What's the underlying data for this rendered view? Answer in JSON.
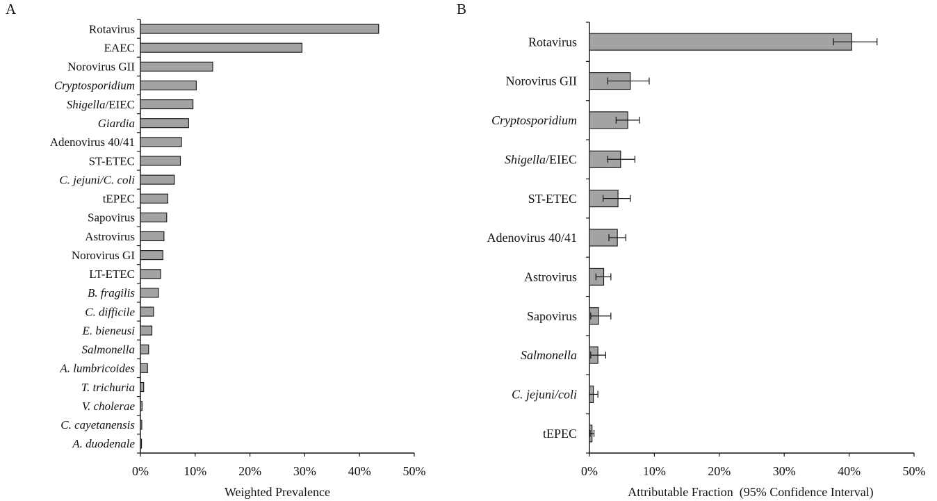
{
  "chart_data": [
    {
      "panel_label": "A",
      "type": "bar",
      "orientation": "horizontal",
      "xlabel": "Weighted Prevalence",
      "xlim": [
        0,
        50
      ],
      "xtick_labels": [
        "0%",
        "10%",
        "20%",
        "30%",
        "40%",
        "50%"
      ],
      "grid": false,
      "legend": "none",
      "bar_color": "#a3a3a6",
      "categories": [
        {
          "label": "Rotavirus",
          "italic": "",
          "rest": "Rotavirus"
        },
        {
          "label": "EAEC",
          "italic": "",
          "rest": "EAEC"
        },
        {
          "label": "Norovirus GII",
          "italic": "",
          "rest": "Norovirus GII"
        },
        {
          "label": "Cryptosporidium",
          "italic": "Cryptosporidium",
          "rest": ""
        },
        {
          "label": "Shigella/EIEC",
          "italic": "Shigella",
          "rest": "/EIEC"
        },
        {
          "label": "Giardia",
          "italic": "Giardia",
          "rest": ""
        },
        {
          "label": "Adenovirus 40/41",
          "italic": "",
          "rest": "Adenovirus 40/41"
        },
        {
          "label": "ST-ETEC",
          "italic": "",
          "rest": "ST-ETEC"
        },
        {
          "label": "C. jejuni/C. coli",
          "italic": "C. jejuni/C. coli",
          "rest": ""
        },
        {
          "label": "tEPEC",
          "italic": "",
          "rest": "tEPEC"
        },
        {
          "label": "Sapovirus",
          "italic": "",
          "rest": "Sapovirus"
        },
        {
          "label": "Astrovirus",
          "italic": "",
          "rest": "Astrovirus"
        },
        {
          "label": "Norovirus GI",
          "italic": "",
          "rest": "Norovirus GI"
        },
        {
          "label": "LT-ETEC",
          "italic": "",
          "rest": "LT-ETEC"
        },
        {
          "label": "B. fragilis",
          "italic": "B. fragilis",
          "rest": ""
        },
        {
          "label": "C. difficile",
          "italic": "C. difficile",
          "rest": ""
        },
        {
          "label": "E. bieneusi",
          "italic": "E. bieneusi",
          "rest": ""
        },
        {
          "label": "Salmonella",
          "italic": "Salmonella",
          "rest": ""
        },
        {
          "label": "A. lumbricoides",
          "italic": "A. lumbricoides",
          "rest": ""
        },
        {
          "label": "T. trichuria",
          "italic": "T. trichuria",
          "rest": ""
        },
        {
          "label": "V. cholerae",
          "italic": "V. cholerae",
          "rest": ""
        },
        {
          "label": "C. cayetanensis",
          "italic": "C. cayetanensis",
          "rest": ""
        },
        {
          "label": "A. duodenale",
          "italic": "A. duodenale",
          "rest": ""
        }
      ],
      "values": [
        43.5,
        29.5,
        13.2,
        10.2,
        9.6,
        8.8,
        7.5,
        7.3,
        6.2,
        5.0,
        4.8,
        4.3,
        4.1,
        3.7,
        3.3,
        2.4,
        2.1,
        1.5,
        1.3,
        0.6,
        0.3,
        0.25,
        0.2
      ]
    },
    {
      "panel_label": "B",
      "type": "bar",
      "orientation": "horizontal",
      "xlabel": "Attributable Fraction  (95% Confidence Interval)",
      "xlim": [
        0,
        50
      ],
      "xtick_labels": [
        "0%",
        "10%",
        "20%",
        "30%",
        "40%",
        "50%"
      ],
      "grid": false,
      "legend": "none",
      "bar_color": "#a3a3a6",
      "categories": [
        {
          "label": "Rotavirus",
          "italic": "",
          "rest": "Rotavirus"
        },
        {
          "label": "Norovirus GII",
          "italic": "",
          "rest": "Norovirus GII"
        },
        {
          "label": "Cryptosporidium",
          "italic": "Cryptosporidium",
          "rest": ""
        },
        {
          "label": "Shigella/EIEC",
          "italic": "Shigella",
          "rest": "/EIEC"
        },
        {
          "label": "ST-ETEC",
          "italic": "",
          "rest": "ST-ETEC"
        },
        {
          "label": "Adenovirus 40/41",
          "italic": "",
          "rest": "Adenovirus 40/41"
        },
        {
          "label": "Astrovirus",
          "italic": "",
          "rest": "Astrovirus"
        },
        {
          "label": "Sapovirus",
          "italic": "",
          "rest": "Sapovirus"
        },
        {
          "label": "Salmonella",
          "italic": "Salmonella",
          "rest": ""
        },
        {
          "label": "C. jejuni/coli",
          "italic": "C. jejuni/coli",
          "rest": ""
        },
        {
          "label": "tEPEC",
          "italic": "",
          "rest": "tEPEC"
        }
      ],
      "values": [
        40.4,
        6.3,
        5.9,
        4.8,
        4.4,
        4.3,
        2.2,
        1.4,
        1.3,
        0.6,
        0.4
      ],
      "ci_low": [
        37.6,
        2.8,
        4.1,
        2.8,
        2.1,
        3.0,
        1.0,
        0.2,
        0.2,
        0.0,
        0.1
      ],
      "ci_high": [
        44.3,
        9.2,
        7.7,
        7.0,
        6.3,
        5.6,
        3.3,
        3.3,
        2.5,
        1.3,
        0.7
      ]
    }
  ]
}
